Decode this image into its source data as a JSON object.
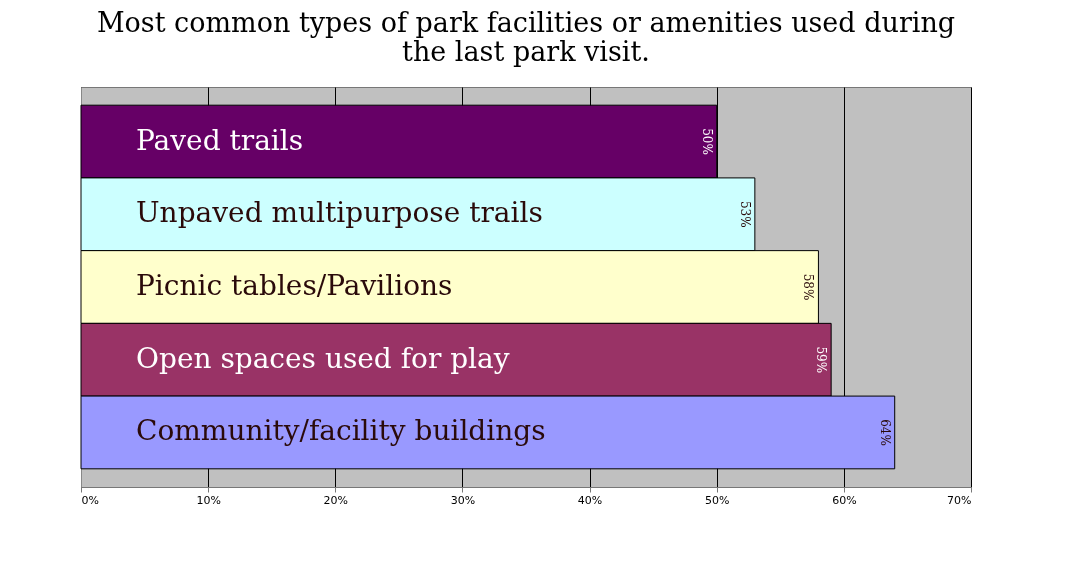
{
  "chart_data": {
    "type": "bar",
    "orientation": "horizontal",
    "title": [
      "Most common types of park facilities or amenities used during",
      "the last park visit."
    ],
    "categories": [
      "Paved trails",
      "Unpaved multipurpose trails",
      "Picnic tables/Pavilions",
      "Open spaces used for play",
      "Community/facility buildings"
    ],
    "values": [
      50,
      53,
      58,
      59,
      64
    ],
    "colors": [
      "#660066",
      "#ccffff",
      "#ffffcc",
      "#993366",
      "#9999ff"
    ],
    "value_labels": [
      "50%",
      "53%",
      "58%",
      "59%",
      "64%"
    ],
    "xlim": [
      0,
      70
    ],
    "xticks": [
      {
        "value": 0,
        "label": "0%"
      },
      {
        "value": 10,
        "label": "10%"
      },
      {
        "value": 20,
        "label": "20%"
      },
      {
        "value": 30,
        "label": "30%"
      },
      {
        "value": 40,
        "label": "40%"
      },
      {
        "value": 50,
        "label": "50%"
      },
      {
        "value": 60,
        "label": "60%"
      },
      {
        "value": 70,
        "label": "70%"
      }
    ],
    "grid": "x",
    "tick_labels": "x",
    "legend": false
  }
}
